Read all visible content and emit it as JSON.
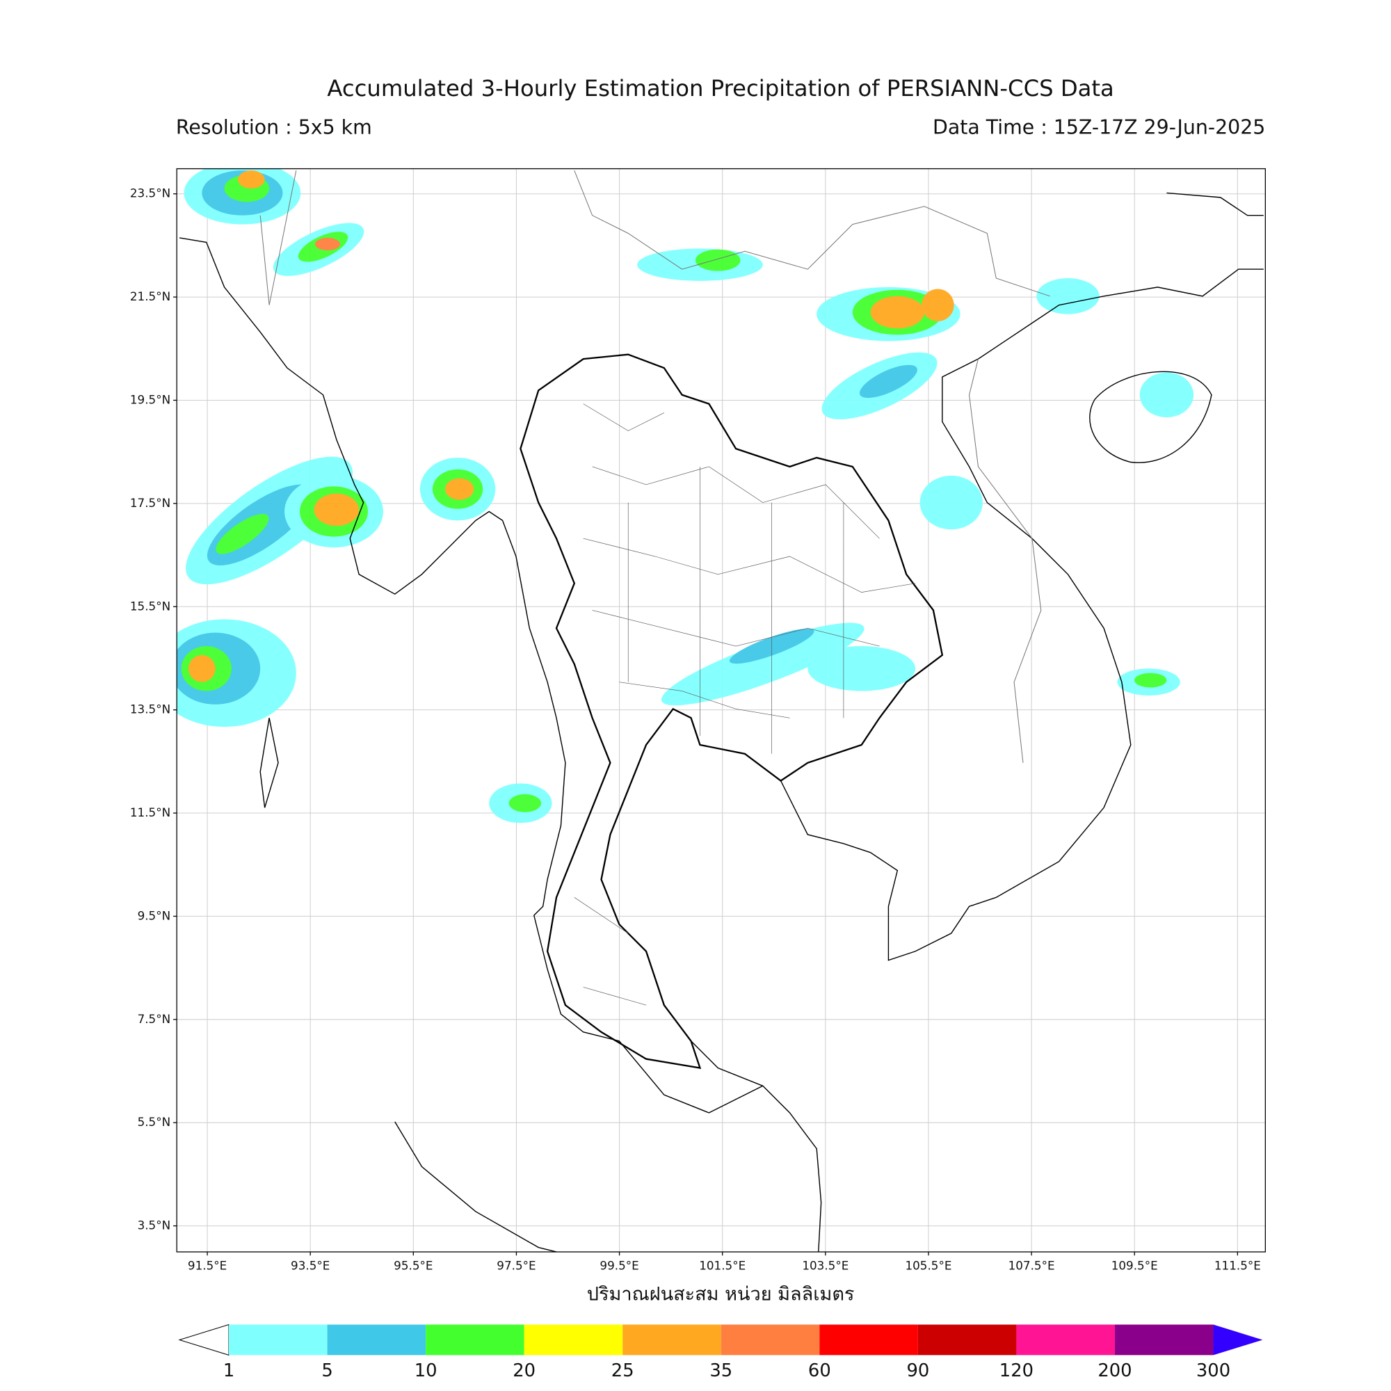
{
  "header": {
    "title": "Accumulated 3-Hourly Estimation Precipitation of PERSIANN-CCS Data",
    "resolution": "Resolution : 5x5 km",
    "data_time": "Data Time : 15Z-17Z 29-Jun-2025"
  },
  "map": {
    "lat_ticks": [
      "23.5°N",
      "21.5°N",
      "19.5°N",
      "17.5°N",
      "15.5°N",
      "13.5°N",
      "11.5°N",
      "9.5°N",
      "7.5°N",
      "5.5°N",
      "3.5°N"
    ],
    "lon_ticks": [
      "91.5°E",
      "93.5°E",
      "95.5°E",
      "97.5°E",
      "99.5°E",
      "101.5°E",
      "103.5°E",
      "105.5°E",
      "107.5°E",
      "109.5°E",
      "111.5°E"
    ]
  },
  "colorbar": {
    "label": "ปริมาณฝนสะสม หน่วย มิลลิเมตร",
    "ticks": [
      "1",
      "5",
      "10",
      "20",
      "25",
      "35",
      "60",
      "90",
      "120",
      "200",
      "300"
    ],
    "colors": [
      "#80ffff",
      "#40c8e8",
      "#44ff2e",
      "#ffff00",
      "#ffa820",
      "#ff7f40",
      "#ff0000",
      "#cc0000",
      "#ff1493",
      "#8b008b"
    ],
    "under_color": "#ffffff",
    "over_color": "#3300ff"
  }
}
